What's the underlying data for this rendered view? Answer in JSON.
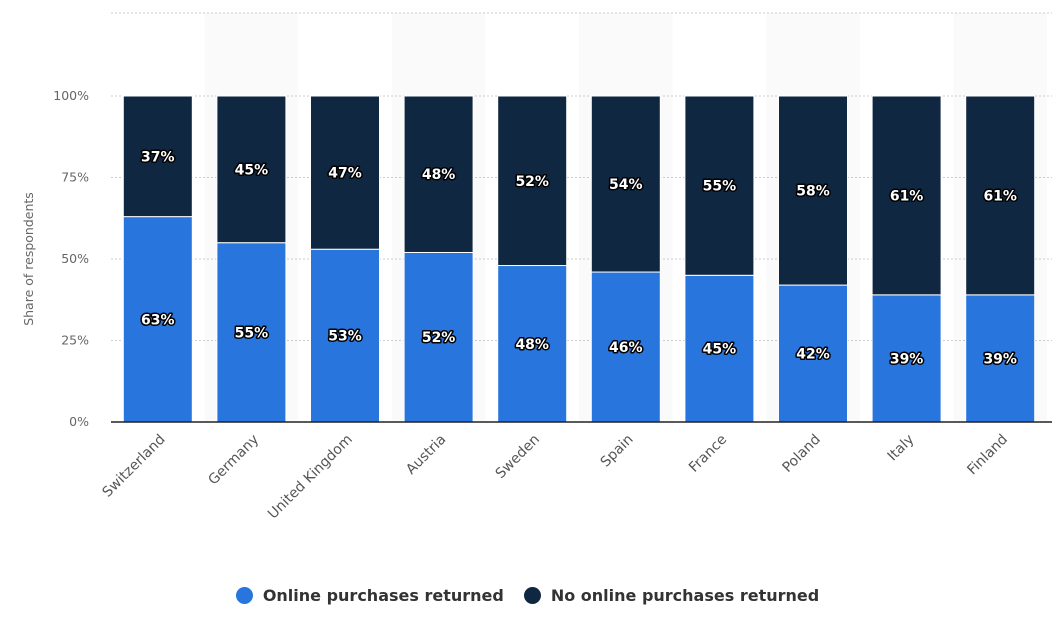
{
  "chart_data": {
    "type": "bar",
    "stacked": true,
    "title": "",
    "xlabel": "",
    "ylabel": "Share of respondents",
    "ylim": [
      0,
      100
    ],
    "yticks": [
      "0%",
      "25%",
      "50%",
      "75%",
      "100%"
    ],
    "grid": true,
    "legend_position": "bottom",
    "categories": [
      "Switzerland",
      "Germany",
      "United Kingdom",
      "Austria",
      "Sweden",
      "Spain",
      "France",
      "Poland",
      "Italy",
      "Finland"
    ],
    "series": [
      {
        "name": "Online purchases returned",
        "color": "#2876dd",
        "values": [
          63,
          55,
          53,
          52,
          48,
          46,
          45,
          42,
          39,
          39
        ]
      },
      {
        "name": "No online purchases returned",
        "color": "#0f2740",
        "values": [
          37,
          45,
          47,
          48,
          52,
          54,
          55,
          58,
          61,
          61
        ]
      }
    ]
  }
}
